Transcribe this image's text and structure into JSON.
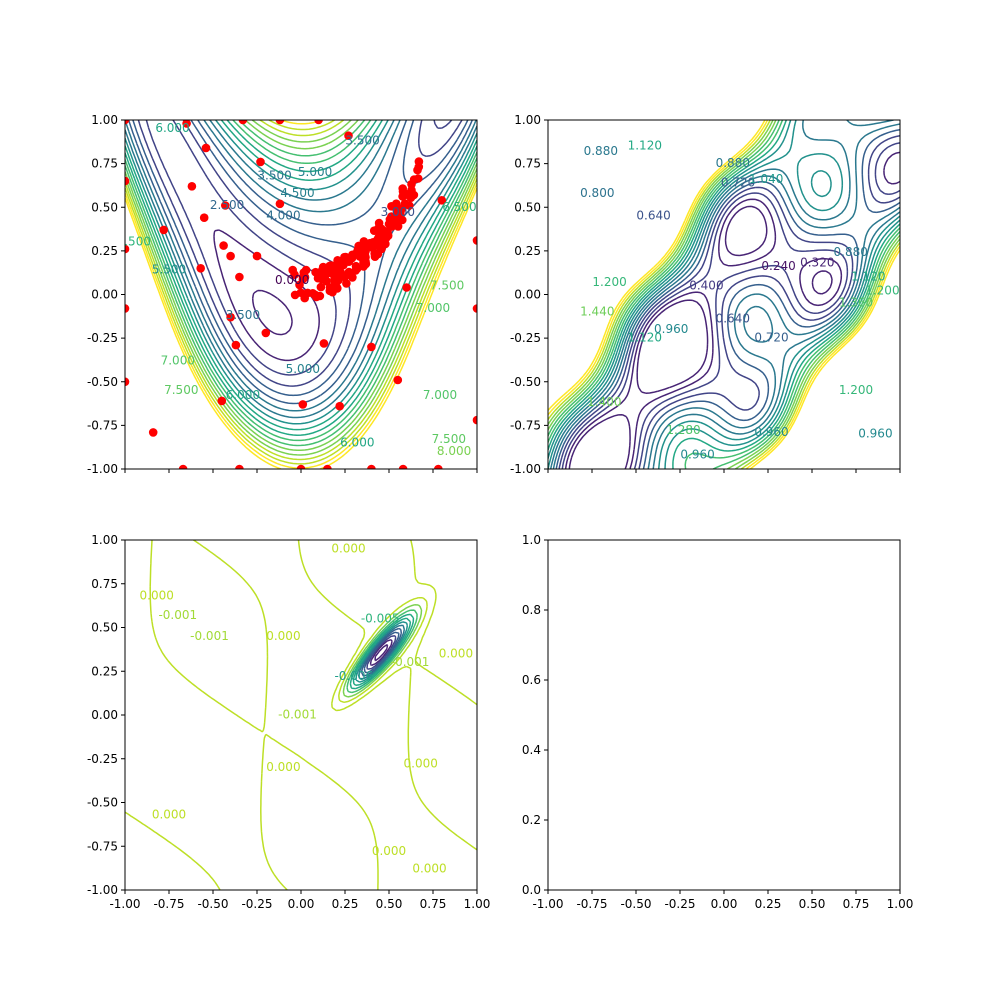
{
  "chart_data": [
    {
      "type": "contour",
      "panel": "top-left",
      "xlim": [
        -1.0,
        1.0
      ],
      "ylim": [
        -1.0,
        1.0
      ],
      "xticks": [
        "",
        "",
        "",
        "",
        "",
        "",
        "",
        "",
        ""
      ],
      "yticks": [
        "-1.00",
        "-0.75",
        "-0.50",
        "-0.25",
        "0.00",
        "0.25",
        "0.50",
        "0.75",
        "1.00"
      ],
      "colormap": "viridis",
      "contour_labels": [
        {
          "x": -0.73,
          "y": 0.95,
          "text": "6.000",
          "color": "#22a785"
        },
        {
          "x": -0.95,
          "y": 0.3,
          "text": "6.500",
          "color": "#2fb47c"
        },
        {
          "x": -0.75,
          "y": 0.14,
          "text": "5.500",
          "color": "#21918c"
        },
        {
          "x": -0.42,
          "y": 0.51,
          "text": "2.500",
          "color": "#31688e"
        },
        {
          "x": -0.15,
          "y": 0.68,
          "text": "3.500",
          "color": "#2c728e"
        },
        {
          "x": 0.08,
          "y": 0.7,
          "text": "5.000",
          "color": "#26828e"
        },
        {
          "x": -0.1,
          "y": 0.45,
          "text": "4.000",
          "color": "#2e6f8e"
        },
        {
          "x": -0.02,
          "y": 0.58,
          "text": "4.500",
          "color": "#27808e"
        },
        {
          "x": 0.35,
          "y": 0.88,
          "text": "3.500",
          "color": "#2c728e"
        },
        {
          "x": 0.55,
          "y": 0.47,
          "text": "3.000",
          "color": "#3b528b"
        },
        {
          "x": -0.05,
          "y": 0.08,
          "text": "0.000",
          "color": "#440154"
        },
        {
          "x": -0.33,
          "y": -0.12,
          "text": "3.500",
          "color": "#2c728e"
        },
        {
          "x": 0.01,
          "y": -0.43,
          "text": "5.000",
          "color": "#26828e"
        },
        {
          "x": -0.33,
          "y": -0.58,
          "text": "6.000",
          "color": "#22a785"
        },
        {
          "x": -0.7,
          "y": -0.38,
          "text": "7.000",
          "color": "#52c569"
        },
        {
          "x": -0.68,
          "y": -0.55,
          "text": "7.500",
          "color": "#5ec962"
        },
        {
          "x": 0.32,
          "y": -0.85,
          "text": "6.000",
          "color": "#22a785"
        },
        {
          "x": 0.75,
          "y": -0.08,
          "text": "7.000",
          "color": "#52c569"
        },
        {
          "x": 0.83,
          "y": 0.05,
          "text": "7.500",
          "color": "#5ec962"
        },
        {
          "x": 0.79,
          "y": -0.58,
          "text": "7.000",
          "color": "#52c569"
        },
        {
          "x": 0.84,
          "y": -0.83,
          "text": "7.500",
          "color": "#5ec962"
        },
        {
          "x": 0.87,
          "y": -0.9,
          "text": "8.000",
          "color": "#7ad151"
        },
        {
          "x": 0.9,
          "y": 0.5,
          "text": "6.500",
          "color": "#2fb47c"
        }
      ],
      "scatter_color": "#ff0000"
    },
    {
      "type": "contour",
      "panel": "top-right",
      "xlim": [
        -1.0,
        1.0
      ],
      "ylim": [
        -1.0,
        1.0
      ],
      "xticks": [
        "",
        "",
        "",
        "",
        "",
        "",
        "",
        "",
        ""
      ],
      "yticks": [
        "-1.00",
        "-0.75",
        "-0.50",
        "-0.25",
        "0.00",
        "0.25",
        "0.50",
        "0.75",
        "1.00"
      ],
      "colormap": "viridis",
      "contour_labels": [
        {
          "x": -0.7,
          "y": 0.82,
          "text": "0.880",
          "color": "#2a788e"
        },
        {
          "x": -0.45,
          "y": 0.85,
          "text": "1.120",
          "color": "#22a884"
        },
        {
          "x": -0.72,
          "y": 0.58,
          "text": "0.800",
          "color": "#2c728e"
        },
        {
          "x": -0.4,
          "y": 0.45,
          "text": "0.640",
          "color": "#3b528b"
        },
        {
          "x": 0.05,
          "y": 0.75,
          "text": "0.880",
          "color": "#2a788e"
        },
        {
          "x": 0.08,
          "y": 0.64,
          "text": "0.720",
          "color": "#355f8d"
        },
        {
          "x": 0.24,
          "y": 0.66,
          "text": "1.040",
          "color": "#1f988b"
        },
        {
          "x": 0.31,
          "y": 0.16,
          "text": "0.240",
          "color": "#471365"
        },
        {
          "x": 0.53,
          "y": 0.18,
          "text": "0.320",
          "color": "#482576"
        },
        {
          "x": -0.1,
          "y": 0.05,
          "text": "0.400",
          "color": "#443a83"
        },
        {
          "x": -0.65,
          "y": 0.07,
          "text": "1.200",
          "color": "#35b779"
        },
        {
          "x": -0.72,
          "y": -0.1,
          "text": "1.440",
          "color": "#6ece58"
        },
        {
          "x": -0.45,
          "y": -0.25,
          "text": "1.120",
          "color": "#22a884"
        },
        {
          "x": -0.3,
          "y": -0.2,
          "text": "0.960",
          "color": "#23898e"
        },
        {
          "x": 0.05,
          "y": -0.14,
          "text": "0.640",
          "color": "#3b528b"
        },
        {
          "x": 0.27,
          "y": -0.25,
          "text": "0.720",
          "color": "#355f8d"
        },
        {
          "x": -0.68,
          "y": -0.62,
          "text": "1.400",
          "color": "#6ece58"
        },
        {
          "x": -0.23,
          "y": -0.78,
          "text": "1.280",
          "color": "#50c46a"
        },
        {
          "x": 0.27,
          "y": -0.79,
          "text": "0.960",
          "color": "#23898e"
        },
        {
          "x": -0.15,
          "y": -0.92,
          "text": "0.960",
          "color": "#23898e"
        },
        {
          "x": 0.72,
          "y": 0.24,
          "text": "0.880",
          "color": "#2a788e"
        },
        {
          "x": 0.82,
          "y": 0.1,
          "text": "1.120",
          "color": "#22a884"
        },
        {
          "x": 0.75,
          "y": -0.05,
          "text": "1.360",
          "color": "#52c569"
        },
        {
          "x": 0.9,
          "y": 0.02,
          "text": "1.200",
          "color": "#35b779"
        },
        {
          "x": 0.75,
          "y": -0.55,
          "text": "1.200",
          "color": "#35b779"
        },
        {
          "x": 0.86,
          "y": -0.8,
          "text": "0.960",
          "color": "#23898e"
        }
      ]
    },
    {
      "type": "contour",
      "panel": "bottom-left",
      "xlim": [
        -1.0,
        1.0
      ],
      "ylim": [
        -1.0,
        1.0
      ],
      "xticks": [
        "-1.00",
        "-0.75",
        "-0.50",
        "-0.25",
        "0.00",
        "0.25",
        "0.50",
        "0.75",
        "1.00"
      ],
      "yticks": [
        "-1.00",
        "-0.75",
        "-0.50",
        "-0.25",
        "0.00",
        "0.25",
        "0.50",
        "0.75",
        "1.00"
      ],
      "colormap": "viridis",
      "contour_labels": [
        {
          "x": -0.82,
          "y": 0.68,
          "text": "0.000",
          "color": "#bddf26"
        },
        {
          "x": -0.7,
          "y": 0.57,
          "text": "-0.001",
          "color": "#a2da37"
        },
        {
          "x": -0.52,
          "y": 0.45,
          "text": "-0.001",
          "color": "#a2da37"
        },
        {
          "x": -0.1,
          "y": 0.45,
          "text": "0.000",
          "color": "#bddf26"
        },
        {
          "x": 0.27,
          "y": 0.95,
          "text": "0.000",
          "color": "#bddf26"
        },
        {
          "x": 0.45,
          "y": 0.55,
          "text": "-0.005",
          "color": "#2fb47c"
        },
        {
          "x": 0.62,
          "y": 0.3,
          "text": "-0.001",
          "color": "#a2da37"
        },
        {
          "x": 0.88,
          "y": 0.35,
          "text": "0.000",
          "color": "#bddf26"
        },
        {
          "x": 0.3,
          "y": 0.22,
          "text": "-0.006",
          "color": "#1f9e89"
        },
        {
          "x": -0.02,
          "y": 0.0,
          "text": "-0.001",
          "color": "#a2da37"
        },
        {
          "x": -0.1,
          "y": -0.3,
          "text": "0.000",
          "color": "#bddf26"
        },
        {
          "x": 0.68,
          "y": -0.28,
          "text": "0.000",
          "color": "#bddf26"
        },
        {
          "x": -0.75,
          "y": -0.57,
          "text": "0.000",
          "color": "#bddf26"
        },
        {
          "x": 0.5,
          "y": -0.78,
          "text": "0.000",
          "color": "#bddf26"
        },
        {
          "x": 0.73,
          "y": -0.88,
          "text": "0.000",
          "color": "#bddf26"
        }
      ]
    },
    {
      "type": "empty",
      "panel": "bottom-right",
      "xlim": [
        -1.0,
        1.0
      ],
      "ylim": [
        0.0,
        1.0
      ],
      "xticks": [
        "-1.00",
        "-0.75",
        "-0.50",
        "-0.25",
        "0.00",
        "0.25",
        "0.50",
        "0.75",
        "1.00"
      ],
      "yticks": [
        "0.0",
        "0.2",
        "0.4",
        "0.6",
        "0.8",
        "1.0"
      ]
    }
  ]
}
